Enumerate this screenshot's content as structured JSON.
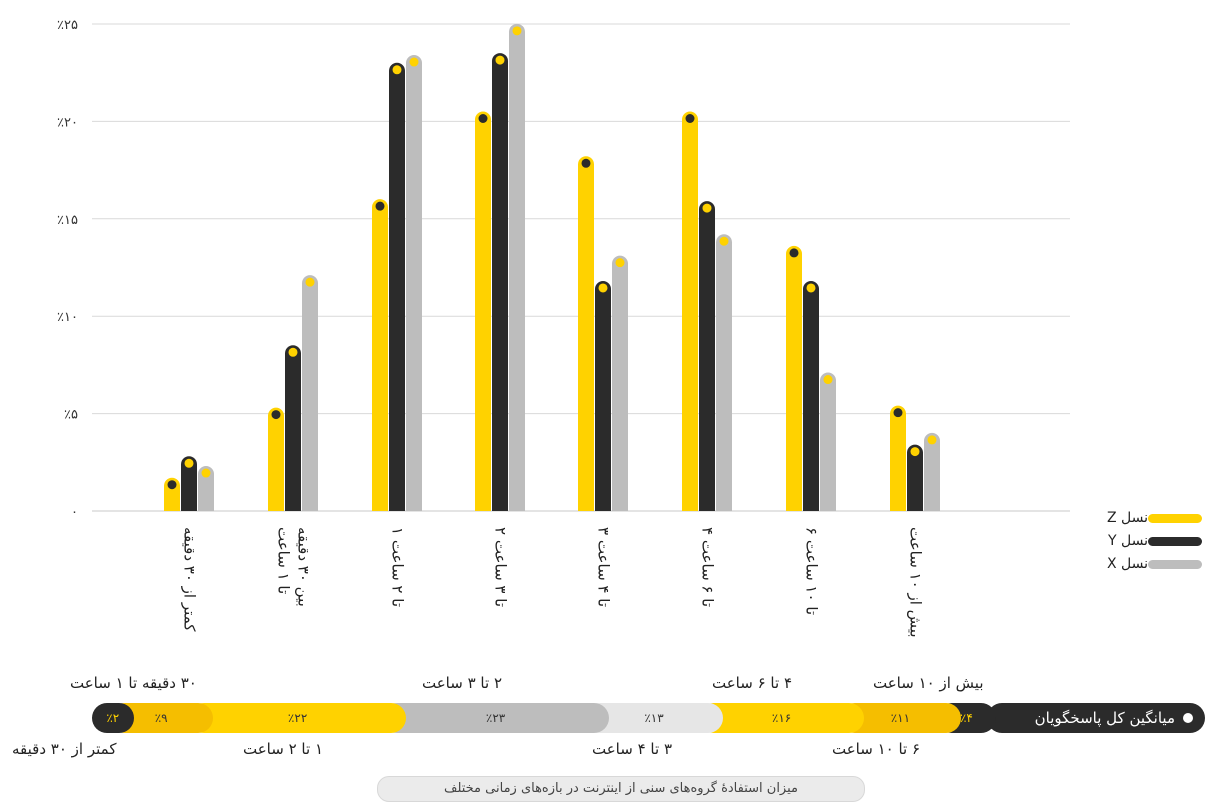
{
  "chart_data": {
    "type": "bar",
    "yticks": [
      "٠",
      "٪۵",
      "٪۱۰",
      "٪۱۵",
      "٪۲۰",
      "٪۲۵"
    ],
    "ylim": [
      0,
      25
    ],
    "categories": [
      [
        "کمتر از ۳۰ دقیقه"
      ],
      [
        "بین ۳۰ دقیقه",
        "تا ۱ ساعت"
      ],
      [
        "۱ تا ۲ ساعت"
      ],
      [
        "۲ تا ۳ ساعت"
      ],
      [
        "۳ تا ۴ ساعت"
      ],
      [
        "۴ تا ۶ ساعت"
      ],
      [
        "۶ تا ۱۰ ساعت"
      ],
      [
        "بیش از ۱۰ ساعت"
      ]
    ],
    "series": [
      {
        "name": "نسل Z",
        "color": "#ffd200",
        "values": [
          1.4,
          5,
          15.7,
          20.2,
          17.9,
          20.2,
          13.3,
          5.1
        ]
      },
      {
        "name": "نسل Y",
        "color": "#2b2b2b",
        "values": [
          2.5,
          8.2,
          22.7,
          23.2,
          11.5,
          15.6,
          11.5,
          3.1
        ]
      },
      {
        "name": "نسل X",
        "color": "#bdbdbd",
        "values": [
          2,
          11.8,
          23.1,
          24.7,
          12.8,
          13.9,
          6.8,
          3.7
        ]
      }
    ],
    "grid": true,
    "legend": "right"
  },
  "summary": {
    "title": "میانگین کل پاسخگویان",
    "segments": [
      {
        "value": "٪۲",
        "color": "#2b2b2b",
        "text_color": "#ffd200",
        "share": 2
      },
      {
        "value": "٪۹",
        "color": "#f5be00",
        "text_color": "#333333",
        "share": 9
      },
      {
        "value": "٪۲۲",
        "color": "#ffd200",
        "text_color": "#333333",
        "share": 22
      },
      {
        "value": "٪۲۳",
        "color": "#bdbdbd",
        "text_color": "#333333",
        "share": 23
      },
      {
        "value": "٪۱۳",
        "color": "#e6e6e6",
        "text_color": "#333333",
        "share": 13
      },
      {
        "value": "٪۱۶",
        "color": "#ffd200",
        "text_color": "#333333",
        "share": 16
      },
      {
        "value": "٪۱۱",
        "color": "#f5be00",
        "text_color": "#333333",
        "share": 11
      },
      {
        "value": "٪۴",
        "color": "#2b2b2b",
        "text_color": "#ffd200",
        "share": 4
      }
    ],
    "labels_top": [
      "۳۰ دقیقه تا ۱ ساعت",
      "۲ تا ۳ ساعت",
      "۴ تا ۶ ساعت",
      "بیش از ۱۰ ساعت"
    ],
    "labels_bottom": [
      "کمتر از ۳۰ دقیقه",
      "۱ تا ۲ ساعت",
      "۳ تا ۴ ساعت",
      "۶ تا ۱۰ ساعت"
    ]
  },
  "caption": "میزان استفادهٔ گروه‌های سنی از اینترنت در بازه‌های زمانی مختلف"
}
